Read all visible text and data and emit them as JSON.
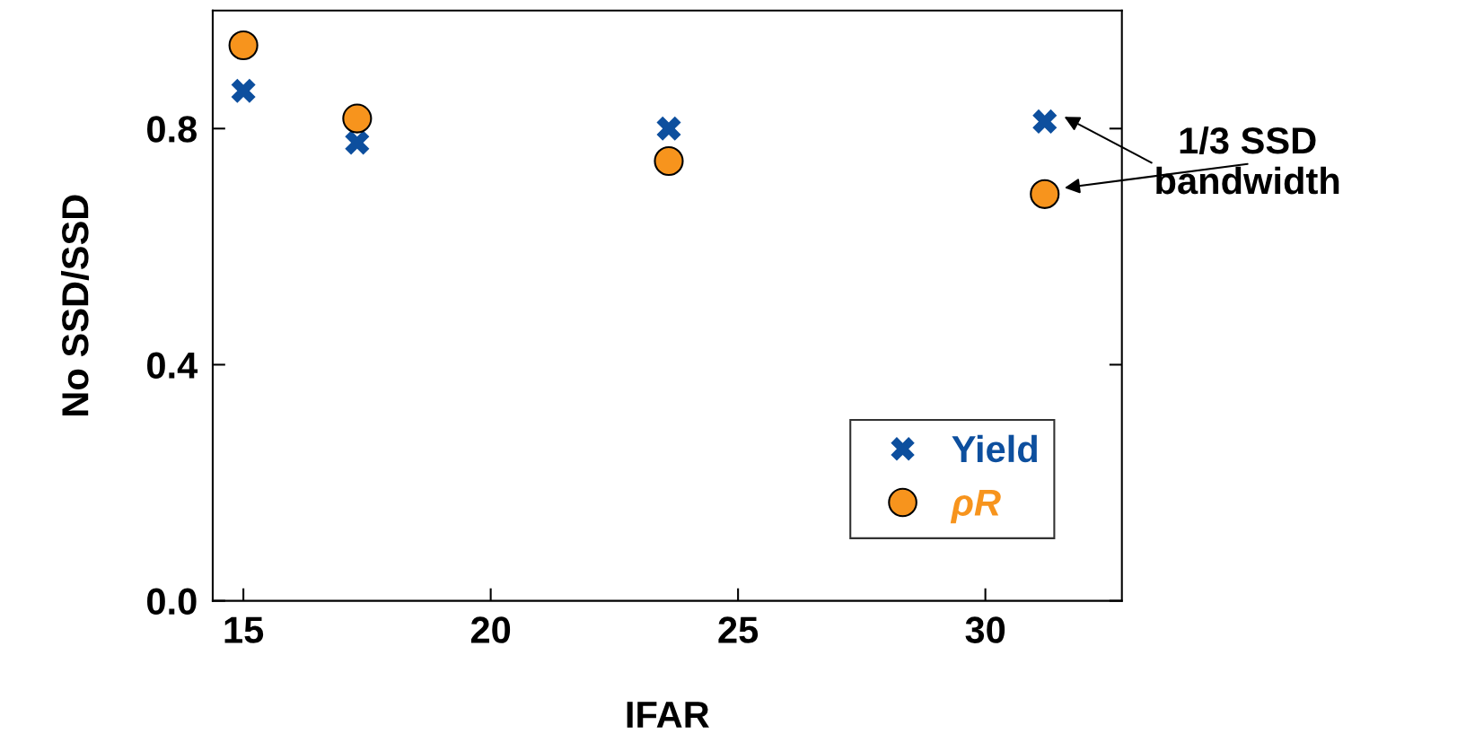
{
  "chart_data": {
    "type": "scatter",
    "xlabel": "IFAR",
    "ylabel": "No SSD/SSD",
    "x": [
      15.0,
      17.3,
      23.6,
      31.2
    ],
    "series": [
      {
        "name": "Yield",
        "color": "#0d4f9e",
        "marker": "cross",
        "values": [
          0.864,
          0.776,
          0.8,
          0.812
        ]
      },
      {
        "name": "ρR",
        "color": "#f7941d",
        "marker": "circle",
        "values": [
          0.941,
          0.817,
          0.745,
          0.689
        ]
      }
    ],
    "xlim": [
      14.38,
      32.76
    ],
    "xticks": [
      15,
      20,
      25,
      30
    ],
    "ylim": [
      0.0,
      1.0
    ],
    "yticks": [
      {
        "value": 0.0,
        "label": "0.0"
      },
      {
        "value": 0.4,
        "label": "0.4"
      },
      {
        "value": 0.8,
        "label": "0.8"
      }
    ],
    "annotations": [
      "1/3 SSD\nbandwidth"
    ],
    "legend": "bottom right",
    "grid": false
  }
}
